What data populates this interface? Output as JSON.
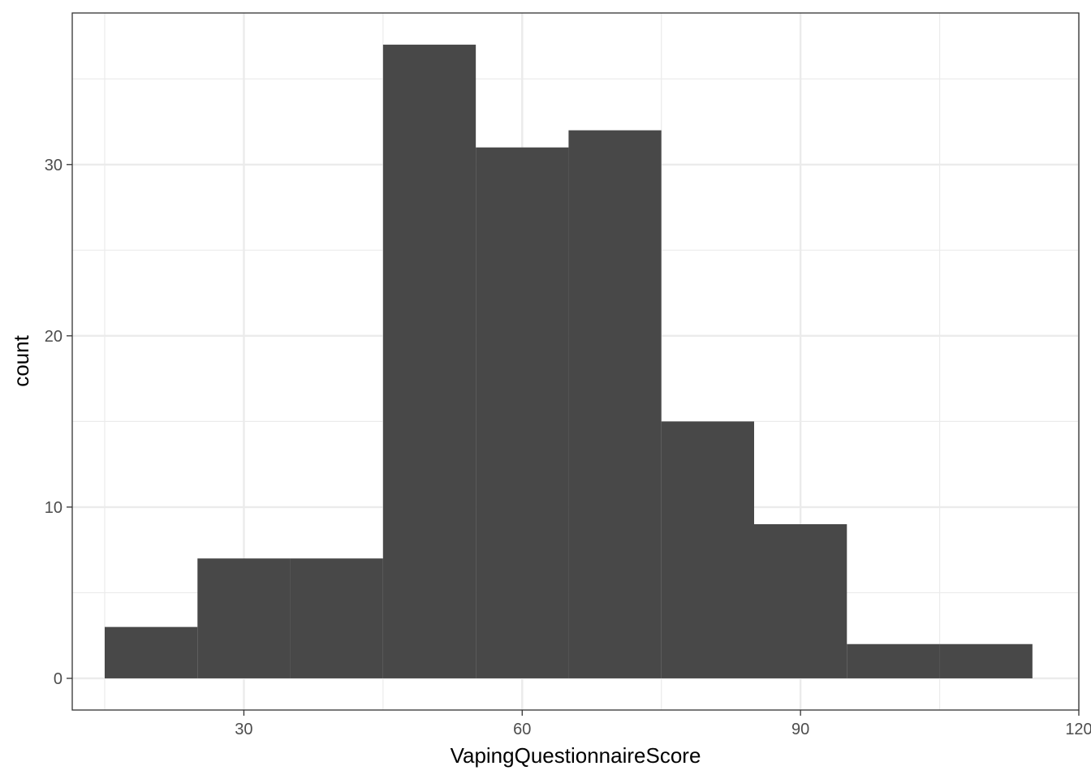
{
  "chart_data": {
    "type": "bar",
    "subtype": "histogram",
    "title": "",
    "xlabel": "VapingQuestionnaireScore",
    "ylabel": "count",
    "xlim": [
      11.5,
      120
    ],
    "ylim": [
      -1.85,
      38.85
    ],
    "x_ticks": [
      30,
      60,
      90,
      120
    ],
    "y_ticks": [
      0,
      10,
      20,
      30
    ],
    "x_minor_gridlines": [
      15,
      45,
      75,
      105
    ],
    "y_minor_gridlines": [
      5,
      15,
      25,
      35
    ],
    "grid": true,
    "theme": "bw",
    "bar_color": "#484848",
    "bins": [
      {
        "x_start": 15,
        "x_end": 25,
        "count": 3
      },
      {
        "x_start": 25,
        "x_end": 35,
        "count": 7
      },
      {
        "x_start": 35,
        "x_end": 45,
        "count": 7
      },
      {
        "x_start": 45,
        "x_end": 55,
        "count": 37
      },
      {
        "x_start": 55,
        "x_end": 65,
        "count": 31
      },
      {
        "x_start": 65,
        "x_end": 75,
        "count": 32
      },
      {
        "x_start": 75,
        "x_end": 85,
        "count": 15
      },
      {
        "x_start": 85,
        "x_end": 95,
        "count": 9
      },
      {
        "x_start": 95,
        "x_end": 105,
        "count": 2
      },
      {
        "x_start": 105,
        "x_end": 115,
        "count": 2
      }
    ]
  }
}
